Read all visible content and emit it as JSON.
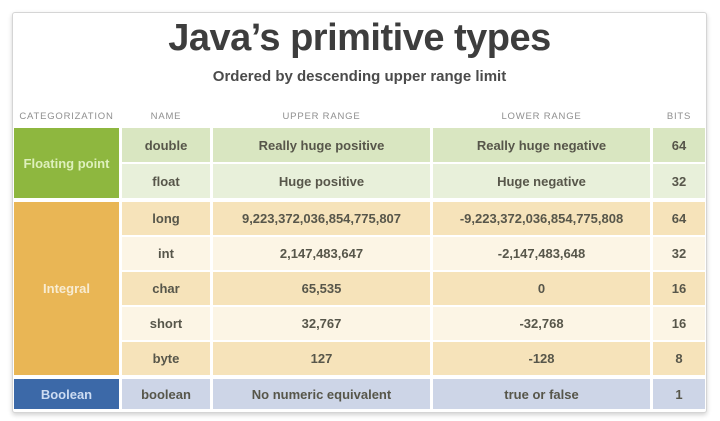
{
  "header": {
    "title": "Java’s primitive types",
    "subtitle": "Ordered by descending upper range limit"
  },
  "table": {
    "columns": [
      "CATEGORIZATION",
      "NAME",
      "UPPER RANGE",
      "LOWER RANGE",
      "BITS"
    ],
    "sections": [
      {
        "category": "Floating point",
        "color": "#8eb73f",
        "rows": [
          {
            "name": "double",
            "upper": "Really huge positive",
            "lower": "Really huge negative",
            "bits": "64"
          },
          {
            "name": "float",
            "upper": "Huge positive",
            "lower": "Huge negative",
            "bits": "32"
          }
        ]
      },
      {
        "category": "Integral",
        "color": "#e9b655",
        "rows": [
          {
            "name": "long",
            "upper": "9,223,372,036,854,775,807",
            "lower": "-9,223,372,036,854,775,808",
            "bits": "64"
          },
          {
            "name": "int",
            "upper": "2,147,483,647",
            "lower": "-2,147,483,648",
            "bits": "32"
          },
          {
            "name": "char",
            "upper": "65,535",
            "lower": "0",
            "bits": "16"
          },
          {
            "name": "short",
            "upper": "32,767",
            "lower": "-32,768",
            "bits": "16"
          },
          {
            "name": "byte",
            "upper": "127",
            "lower": "-128",
            "bits": "8"
          }
        ]
      },
      {
        "category": "Boolean",
        "color": "#3c69a8",
        "rows": [
          {
            "name": "boolean",
            "upper": "No numeric equivalent",
            "lower": "true or false",
            "bits": "1"
          }
        ]
      }
    ]
  },
  "colors": {
    "title_text": "#3d3d3d",
    "header_label_text": "#8f8f8f",
    "floating_row_dark": "#d9e6c1",
    "floating_row_light": "#e8f0da",
    "integral_row_dark": "#f6e3ba",
    "integral_row_light": "#fcf5e5",
    "boolean_row": "#cdd5e7",
    "cell_text": "#57564a"
  },
  "chart_data": {
    "type": "table",
    "title": "Java’s primitive types",
    "subtitle": "Ordered by descending upper range limit",
    "columns": [
      "CATEGORIZATION",
      "NAME",
      "UPPER RANGE",
      "LOWER RANGE",
      "BITS"
    ],
    "rows": [
      [
        "Floating point",
        "double",
        "Really huge positive",
        "Really huge negative",
        64
      ],
      [
        "Floating point",
        "float",
        "Huge positive",
        "Huge negative",
        32
      ],
      [
        "Integral",
        "long",
        "9,223,372,036,854,775,807",
        "-9,223,372,036,854,775,808",
        64
      ],
      [
        "Integral",
        "int",
        "2,147,483,647",
        "-2,147,483,648",
        32
      ],
      [
        "Integral",
        "char",
        "65,535",
        "0",
        16
      ],
      [
        "Integral",
        "short",
        "32,767",
        "-32,768",
        16
      ],
      [
        "Integral",
        "byte",
        "127",
        "-128",
        8
      ],
      [
        "Boolean",
        "boolean",
        "No numeric equivalent",
        "true or false",
        1
      ]
    ]
  }
}
